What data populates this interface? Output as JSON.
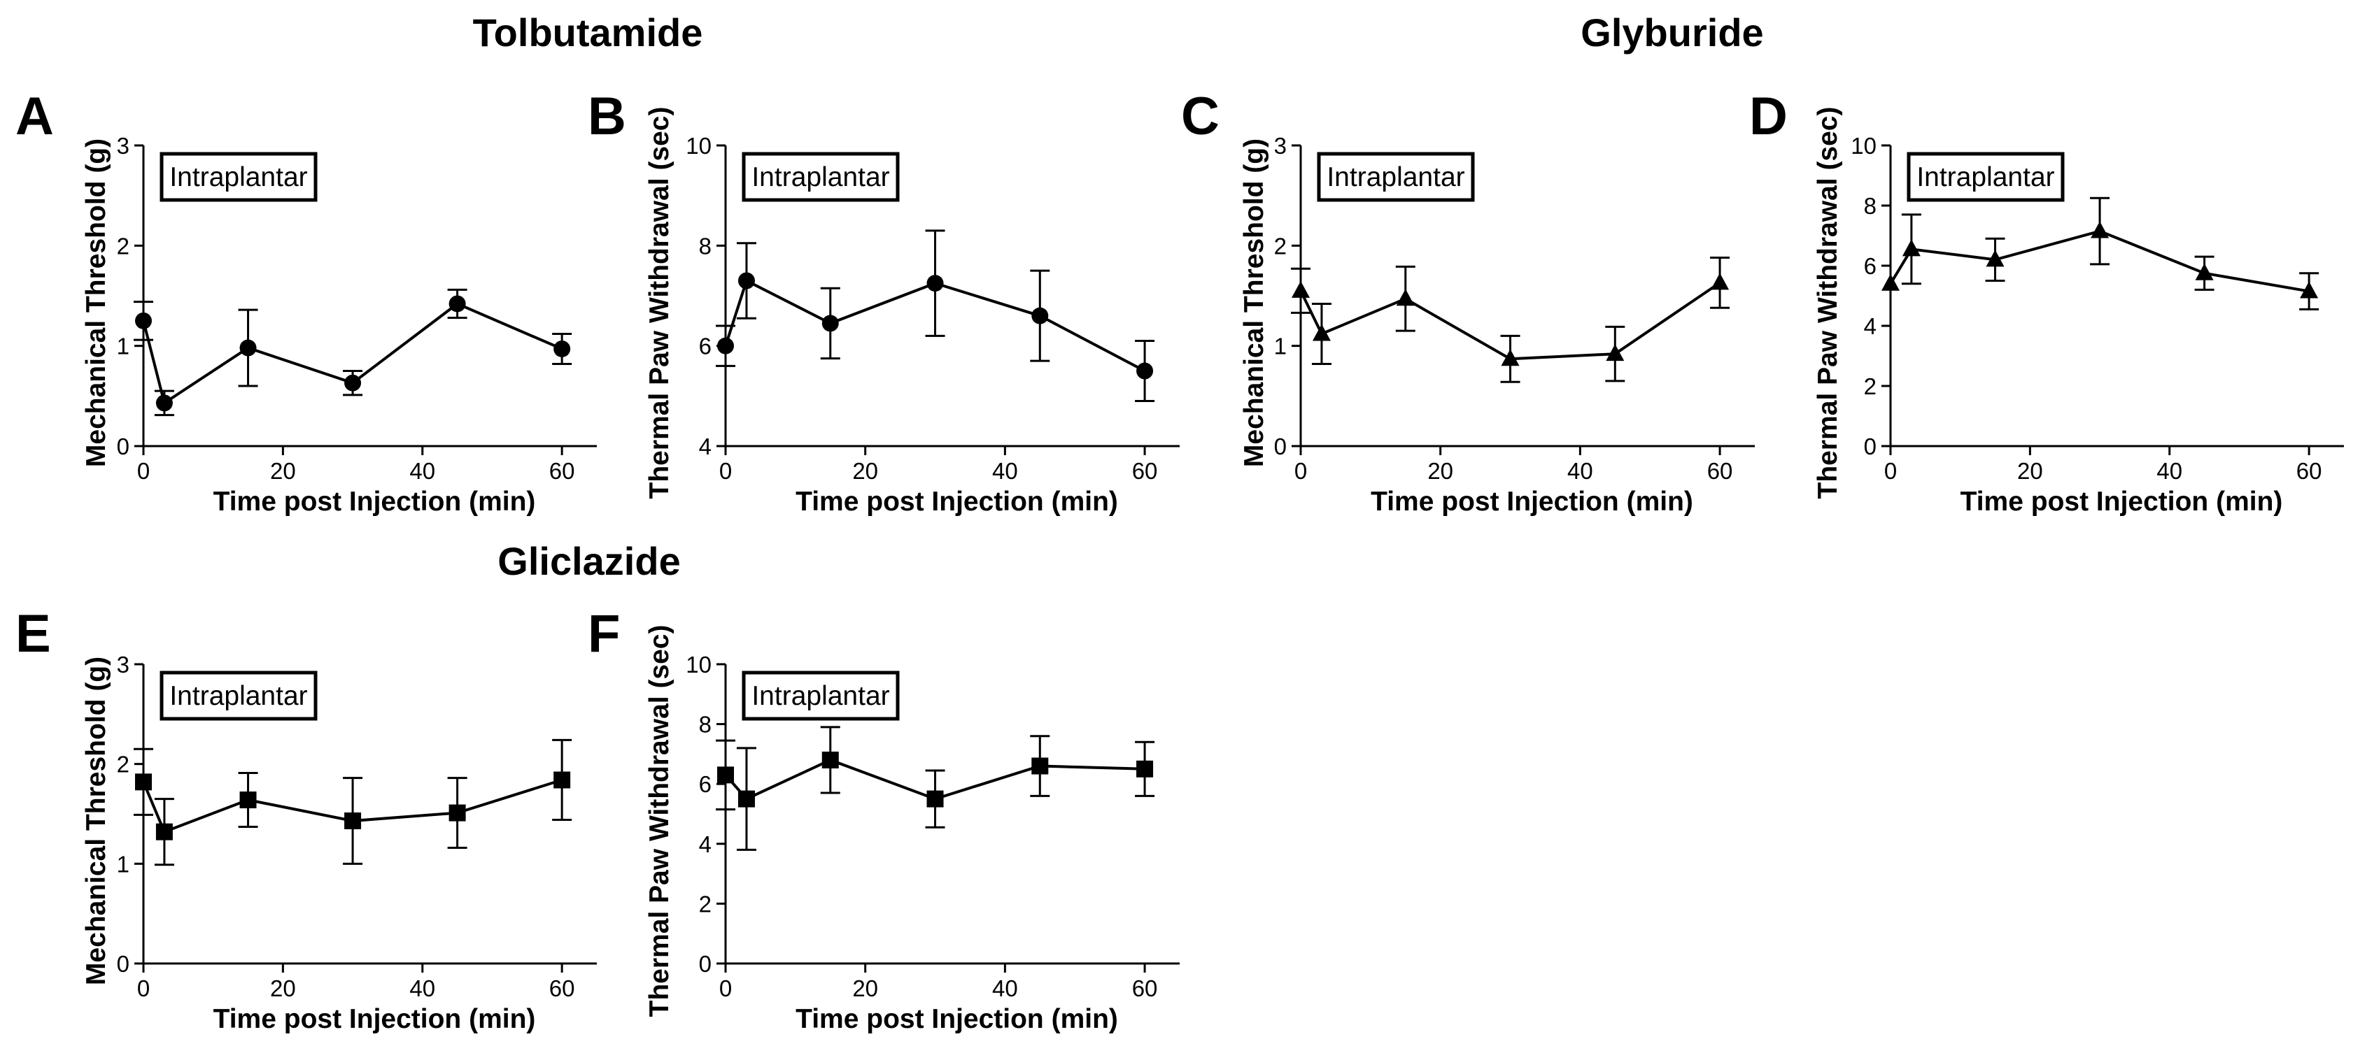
{
  "groups": [
    {
      "name": "Tolbutamide"
    },
    {
      "name": "Glyburide"
    },
    {
      "name": "Gliclazide"
    }
  ],
  "chart_data": [
    {
      "panel": "A",
      "type": "line",
      "marker": "circle",
      "title": "",
      "annotation": "Intraplantar",
      "xlabel": "Time post Injection (min)",
      "ylabel": "Mechanical Threshold (g)",
      "xlim": [
        0,
        65
      ],
      "ylim": [
        0,
        3
      ],
      "xticks": [
        "0",
        "20",
        "40",
        "60"
      ],
      "yticks": [
        "0",
        "1",
        "2",
        "3"
      ],
      "x": [
        0,
        3,
        15,
        30,
        45,
        60
      ],
      "y": [
        1.25,
        0.43,
        0.98,
        0.63,
        1.42,
        0.97
      ],
      "err": [
        0.19,
        0.12,
        0.38,
        0.12,
        0.14,
        0.15
      ]
    },
    {
      "panel": "B",
      "type": "line",
      "marker": "circle",
      "title": "",
      "annotation": "Intraplantar",
      "xlabel": "Time post Injection (min)",
      "ylabel": "Thermal Paw Withdrawal (sec)",
      "xlim": [
        0,
        65
      ],
      "ylim": [
        4,
        10
      ],
      "xticks": [
        "0",
        "20",
        "40",
        "60"
      ],
      "yticks": [
        "4",
        "6",
        "8",
        "10"
      ],
      "x": [
        0,
        3,
        15,
        30,
        45,
        60
      ],
      "y": [
        6.0,
        7.3,
        6.45,
        7.25,
        6.6,
        5.5
      ],
      "err": [
        0.4,
        0.75,
        0.7,
        1.05,
        0.9,
        0.6
      ]
    },
    {
      "panel": "C",
      "type": "line",
      "marker": "triangle",
      "title": "",
      "annotation": "Intraplantar",
      "xlabel": "Time post Injection (min)",
      "ylabel": "Mechanical Threshold (g)",
      "xlim": [
        0,
        65
      ],
      "ylim": [
        0,
        3
      ],
      "xticks": [
        "0",
        "20",
        "40",
        "60"
      ],
      "yticks": [
        "0",
        "1",
        "2",
        "3"
      ],
      "x": [
        0,
        3,
        15,
        30,
        45,
        60
      ],
      "y": [
        1.55,
        1.12,
        1.47,
        0.87,
        0.92,
        1.63
      ],
      "err": [
        0.22,
        0.3,
        0.32,
        0.23,
        0.27,
        0.25
      ]
    },
    {
      "panel": "D",
      "type": "line",
      "marker": "triangle",
      "title": "",
      "annotation": "Intraplantar",
      "xlabel": "Time post Injection (min)",
      "ylabel": "Thermal Paw Withdrawal (sec)",
      "xlim": [
        0,
        65
      ],
      "ylim": [
        0,
        10
      ],
      "xticks": [
        "0",
        "20",
        "40",
        "60"
      ],
      "yticks": [
        "0",
        "2",
        "4",
        "6",
        "8",
        "10"
      ],
      "x": [
        0,
        3,
        15,
        30,
        45,
        60
      ],
      "y": [
        5.4,
        6.55,
        6.2,
        7.15,
        5.75,
        5.15
      ],
      "err": [
        0.0,
        1.15,
        0.7,
        1.1,
        0.55,
        0.6
      ]
    },
    {
      "panel": "E",
      "type": "line",
      "marker": "square",
      "title": "",
      "annotation": "Intraplantar",
      "xlabel": "Time post Injection (min)",
      "ylabel": "Mechanical Threshold (g)",
      "xlim": [
        0,
        65
      ],
      "ylim": [
        0,
        3
      ],
      "xticks": [
        "0",
        "20",
        "40",
        "60"
      ],
      "yticks": [
        "0",
        "1",
        "2",
        "3"
      ],
      "x": [
        0,
        3,
        15,
        30,
        45,
        60
      ],
      "y": [
        1.82,
        1.32,
        1.64,
        1.43,
        1.51,
        1.84
      ],
      "err": [
        0.33,
        0.33,
        0.27,
        0.43,
        0.35,
        0.4
      ]
    },
    {
      "panel": "F",
      "type": "line",
      "marker": "square",
      "title": "",
      "annotation": "Intraplantar",
      "xlabel": "Time post Injection (min)",
      "ylabel": "Thermal Paw Withdrawal (sec)",
      "xlim": [
        0,
        65
      ],
      "ylim": [
        0,
        10
      ],
      "xticks": [
        "0",
        "20",
        "40",
        "60"
      ],
      "yticks": [
        "0",
        "2",
        "4",
        "6",
        "8",
        "10"
      ],
      "x": [
        0,
        3,
        15,
        30,
        45,
        60
      ],
      "y": [
        6.3,
        5.5,
        6.8,
        5.5,
        6.6,
        6.5
      ],
      "err": [
        1.15,
        1.7,
        1.1,
        0.95,
        1.0,
        0.9
      ]
    }
  ]
}
